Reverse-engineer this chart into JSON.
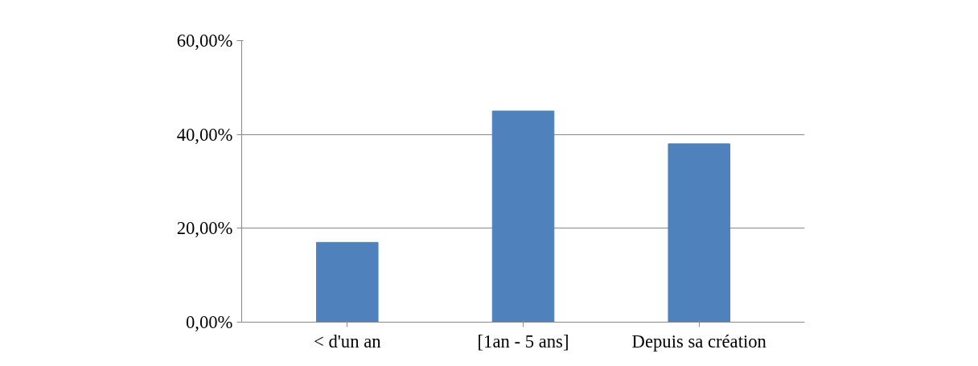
{
  "chart_data": {
    "type": "bar",
    "categories": [
      "< d'un an",
      "[1an - 5 ans]",
      "Depuis sa création"
    ],
    "values": [
      17,
      45,
      38
    ],
    "color": "#4f81bd",
    "ylim": [
      0,
      60
    ],
    "yticks": [
      {
        "value": 0,
        "label": "0,00%"
      },
      {
        "value": 20,
        "label": "20,00%"
      },
      {
        "value": 40,
        "label": "40,00%"
      },
      {
        "value": 60,
        "label": "60,00%"
      }
    ],
    "grid": "y"
  }
}
